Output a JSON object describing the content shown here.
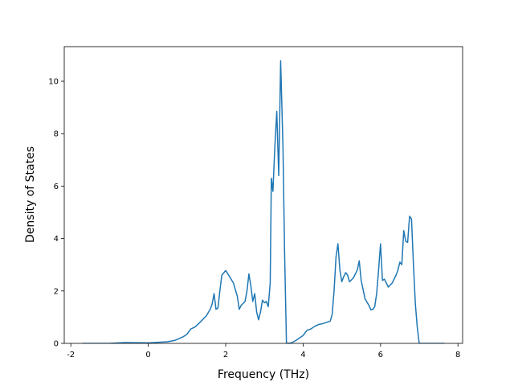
{
  "chart_data": {
    "type": "line",
    "x_label": "Frequency (THz)",
    "y_label": "Density of States",
    "xlim": [
      -2.17,
      8.12
    ],
    "ylim": [
      0,
      11.32
    ],
    "xticks": [
      -2,
      0,
      2,
      4,
      6,
      8
    ],
    "yticks": [
      0,
      2,
      4,
      6,
      8,
      10
    ],
    "x": [
      -1.7,
      -1,
      -0.6,
      0,
      0.5,
      0.7,
      0.9,
      1.0,
      1.1,
      1.2,
      1.3,
      1.4,
      1.5,
      1.6,
      1.65,
      1.7,
      1.75,
      1.8,
      1.85,
      1.9,
      2.0,
      2.1,
      2.2,
      2.3,
      2.35,
      2.4,
      2.5,
      2.55,
      2.6,
      2.65,
      2.7,
      2.75,
      2.8,
      2.85,
      2.9,
      2.95,
      3.0,
      3.05,
      3.1,
      3.15,
      3.18,
      3.22,
      3.27,
      3.32,
      3.37,
      3.42,
      3.48,
      3.52,
      3.57,
      3.7,
      3.8,
      3.9,
      4.0,
      4.1,
      4.2,
      4.3,
      4.4,
      4.5,
      4.6,
      4.7,
      4.75,
      4.8,
      4.85,
      4.9,
      4.95,
      5.0,
      5.05,
      5.1,
      5.15,
      5.2,
      5.3,
      5.4,
      5.45,
      5.5,
      5.6,
      5.7,
      5.75,
      5.8,
      5.85,
      5.9,
      5.95,
      6.0,
      6.05,
      6.1,
      6.2,
      6.3,
      6.4,
      6.45,
      6.5,
      6.55,
      6.6,
      6.65,
      6.7,
      6.75,
      6.8,
      6.85,
      6.9,
      6.95,
      7.0,
      7.65
    ],
    "series": [
      {
        "color": "#1f77b4",
        "values": [
          0,
          0,
          0.03,
          0.02,
          0.06,
          0.12,
          0.25,
          0.35,
          0.55,
          0.62,
          0.75,
          0.9,
          1.05,
          1.3,
          1.5,
          1.9,
          1.3,
          1.35,
          2.0,
          2.6,
          2.78,
          2.55,
          2.3,
          1.8,
          1.3,
          1.45,
          1.6,
          2.0,
          2.65,
          2.2,
          1.6,
          1.9,
          1.2,
          0.9,
          1.2,
          1.65,
          1.55,
          1.6,
          1.4,
          2.3,
          6.3,
          5.8,
          7.5,
          8.85,
          6.4,
          10.78,
          7.5,
          3.6,
          0,
          0.02,
          0.1,
          0.2,
          0.3,
          0.5,
          0.55,
          0.65,
          0.72,
          0.75,
          0.8,
          0.85,
          1.1,
          2.0,
          3.3,
          3.8,
          2.8,
          2.35,
          2.55,
          2.7,
          2.6,
          2.35,
          2.5,
          2.8,
          3.15,
          2.4,
          1.7,
          1.45,
          1.28,
          1.3,
          1.4,
          1.9,
          2.8,
          3.8,
          2.4,
          2.45,
          2.15,
          2.3,
          2.6,
          2.8,
          3.1,
          3.0,
          4.3,
          3.9,
          3.85,
          4.85,
          4.75,
          3.0,
          1.5,
          0.6,
          0,
          0
        ]
      }
    ]
  }
}
